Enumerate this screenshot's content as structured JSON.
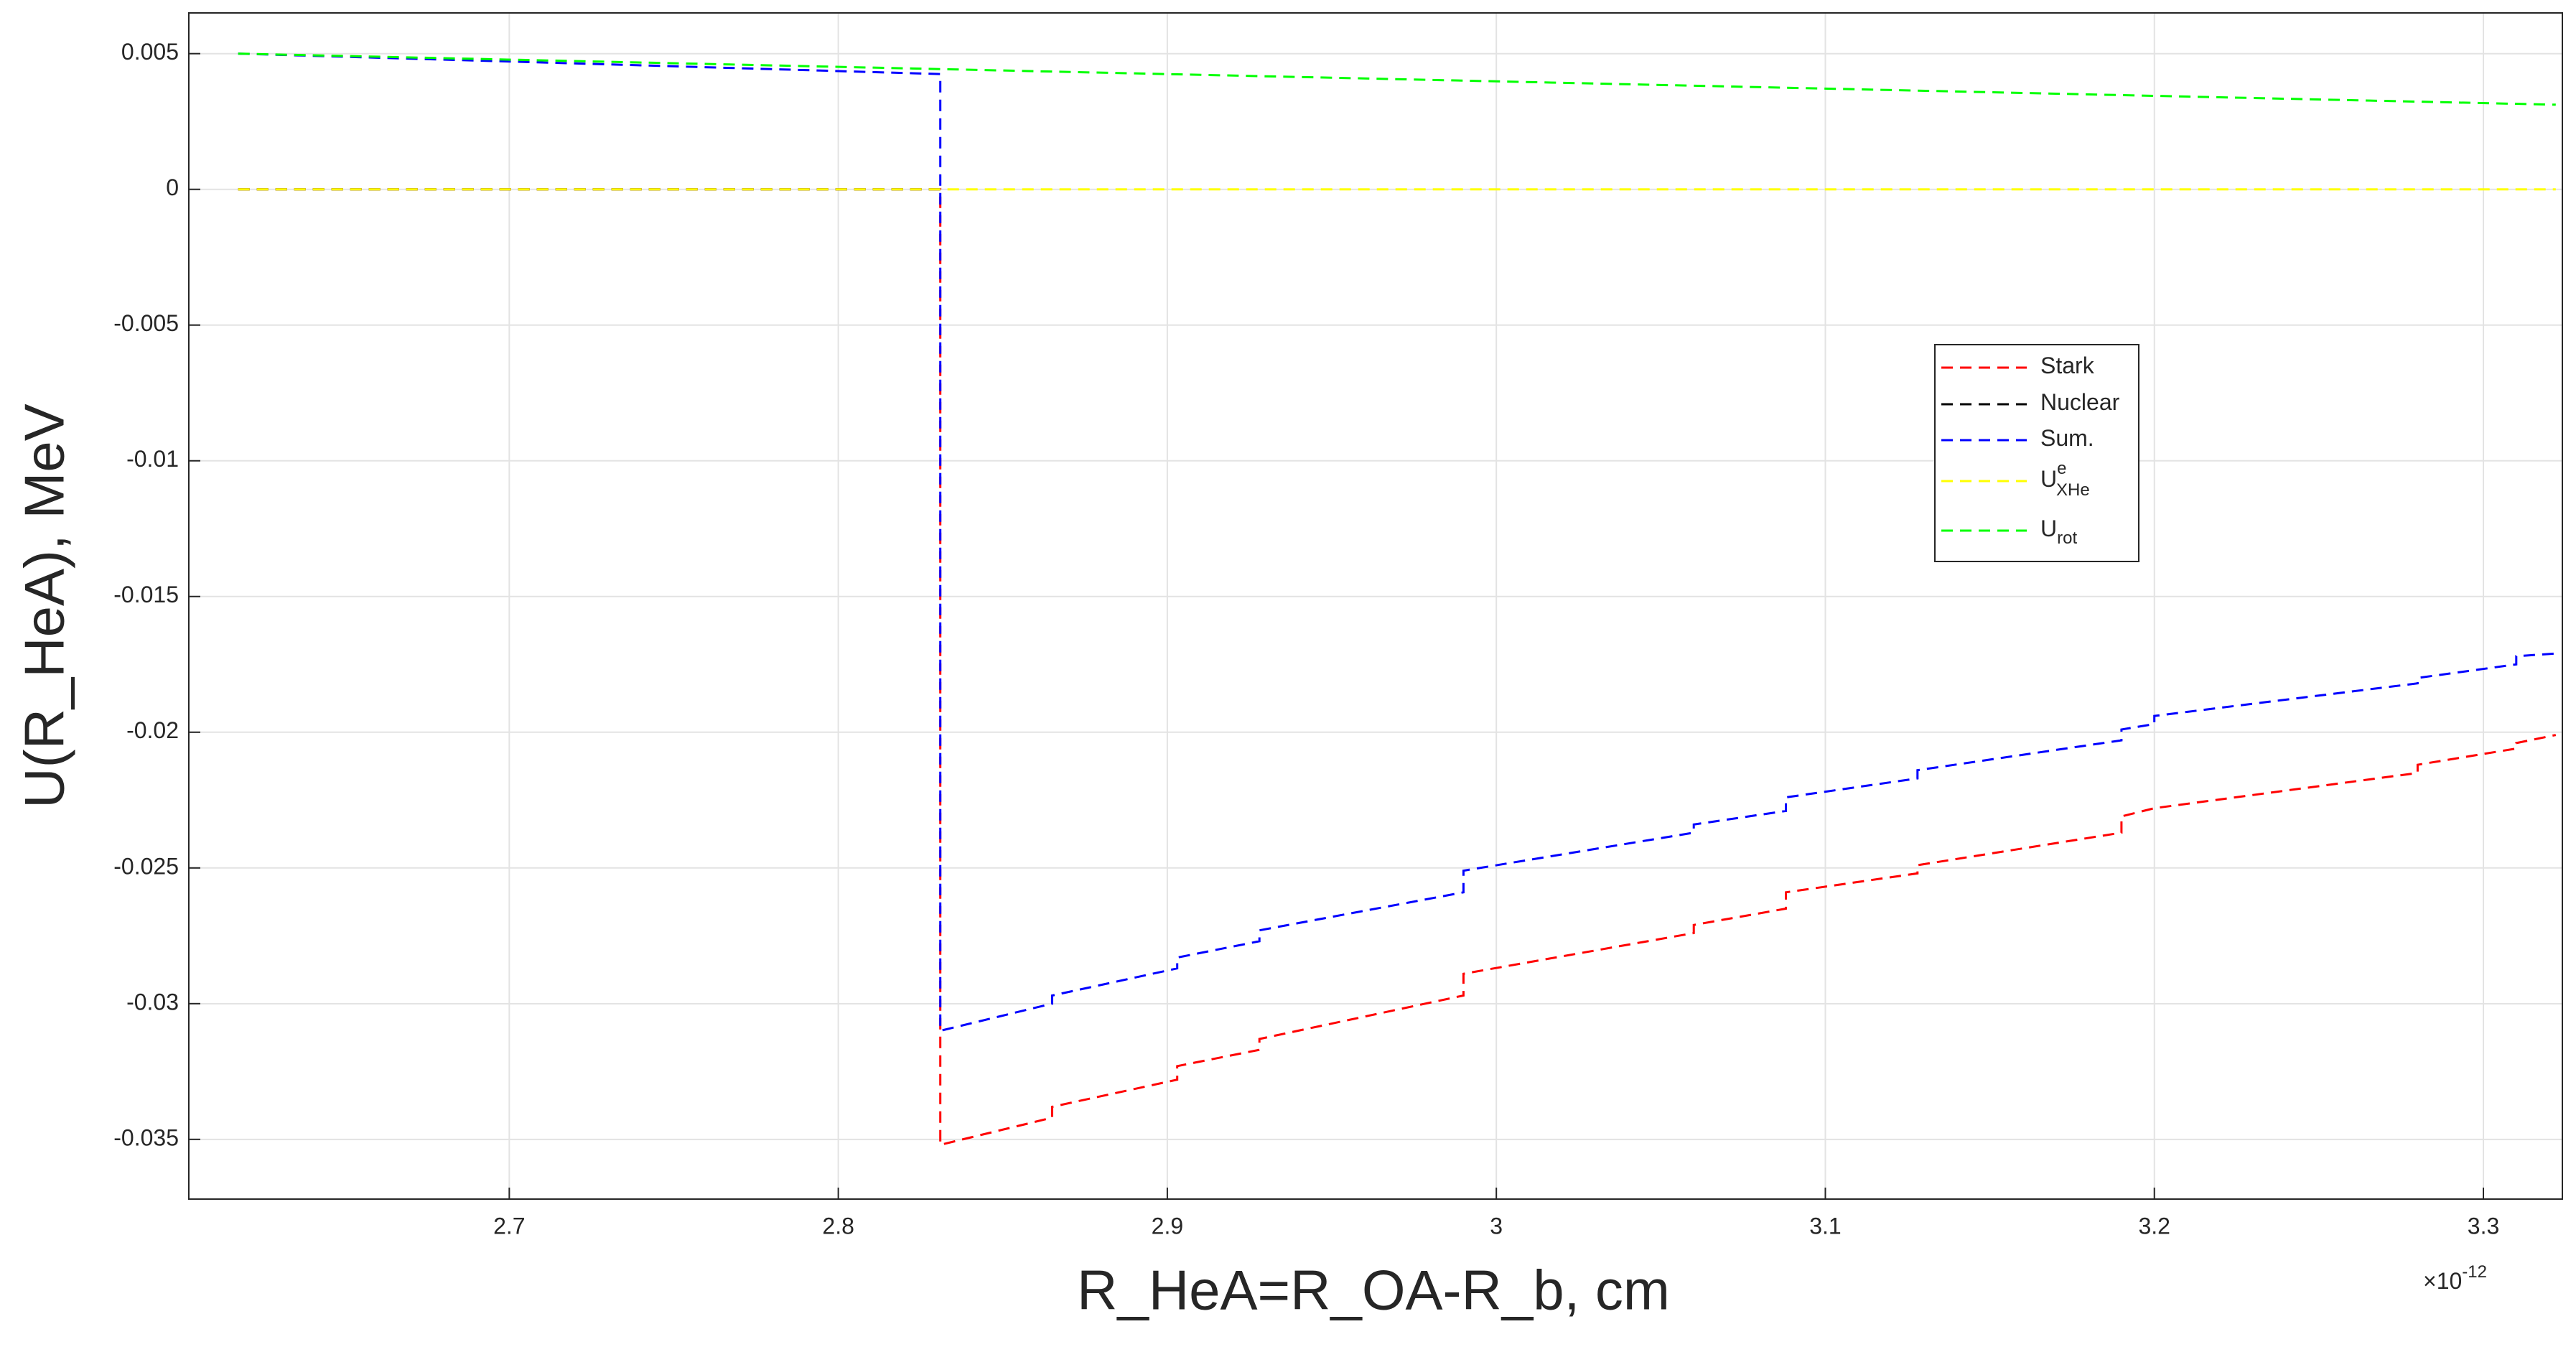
{
  "chart_data": {
    "type": "line",
    "x_label": "R_HeA=R_OA-R_b, cm",
    "y_label": "U(R_HeA), MeV",
    "x_exponent": {
      "base": "×10",
      "power": "-12"
    },
    "xlim": [
      2.6026,
      3.324
    ],
    "xticks": [
      2.7,
      2.8,
      2.9,
      3,
      3.1,
      3.2,
      3.3
    ],
    "ylim": [
      -0.0372,
      0.0065
    ],
    "yticks": [
      0.005,
      0,
      -0.005,
      -0.01,
      -0.015,
      -0.02,
      -0.025,
      -0.03,
      -0.035
    ],
    "grid": true,
    "legend": "upper right",
    "series": [
      {
        "name": "Stark",
        "color": "#ff0000",
        "x": [
          2.6176,
          2.831,
          2.831,
          2.865,
          2.865,
          2.903,
          2.903,
          2.928,
          2.928,
          2.99,
          2.99,
          3.06,
          3.06,
          3.088,
          3.088,
          3.128,
          3.128,
          3.19,
          3.19,
          3.2,
          3.28,
          3.28,
          3.31,
          3.31,
          3.322
        ],
        "values": [
          0,
          0,
          -0.0352,
          -0.0342,
          -0.0338,
          -0.0328,
          -0.0323,
          -0.0317,
          -0.0313,
          -0.0297,
          -0.0289,
          -0.0274,
          -0.0271,
          -0.0265,
          -0.0259,
          -0.0252,
          -0.0249,
          -0.0237,
          -0.0231,
          -0.0228,
          -0.0215,
          -0.0212,
          -0.0206,
          -0.0204,
          -0.0201
        ]
      },
      {
        "name": "Nuclear",
        "color": "#000000",
        "x": [
          2.6176,
          2.831
        ],
        "values": [
          0,
          0
        ]
      },
      {
        "name": "Sum.",
        "color": "#0000ff",
        "x": [
          2.6176,
          2.831,
          2.831,
          2.865,
          2.865,
          2.903,
          2.903,
          2.928,
          2.928,
          2.99,
          2.99,
          3.06,
          3.06,
          3.088,
          3.088,
          3.128,
          3.128,
          3.19,
          3.19,
          3.2,
          3.2,
          3.28,
          3.28,
          3.31,
          3.31,
          3.322
        ],
        "values": [
          0.005,
          0.00425,
          -0.031,
          -0.03,
          -0.0297,
          -0.0287,
          -0.0283,
          -0.0277,
          -0.0273,
          -0.0259,
          -0.0251,
          -0.0237,
          -0.0234,
          -0.0229,
          -0.0224,
          -0.0217,
          -0.0214,
          -0.0203,
          -0.0199,
          -0.0197,
          -0.0194,
          -0.0182,
          -0.018,
          -0.0175,
          -0.0172,
          -0.0171
        ]
      },
      {
        "name": "U",
        "sup": "e",
        "sub": "XHe",
        "color": "#ffff00",
        "x": [
          2.6176,
          3.322
        ],
        "values": [
          0,
          0
        ]
      },
      {
        "name": "U",
        "sub": "rot",
        "color": "#00ff00",
        "x": [
          2.6176,
          3.322
        ],
        "values": [
          0.005,
          0.00312
        ]
      }
    ]
  }
}
